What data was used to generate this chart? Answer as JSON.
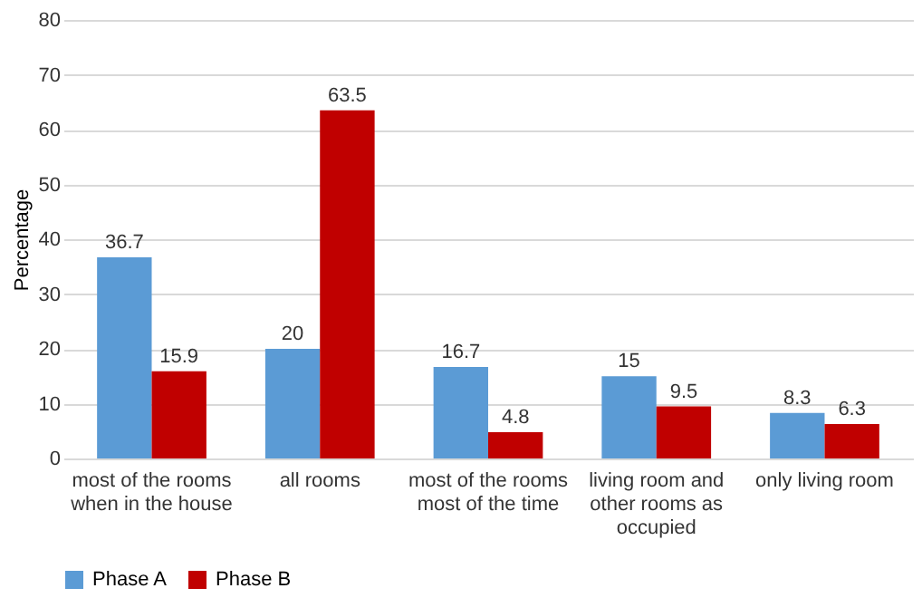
{
  "chart_data": {
    "type": "bar",
    "ylabel": "Percentage",
    "categories": [
      "most of the rooms when in the house",
      "all rooms",
      "most of the rooms most of the time",
      "living room and other rooms as occupied",
      "only living room"
    ],
    "series": [
      {
        "name": "Phase A",
        "color": "#5b9bd5",
        "values": [
          36.7,
          20,
          16.7,
          15,
          8.3
        ]
      },
      {
        "name": "Phase B",
        "color": "#c00000",
        "values": [
          15.9,
          63.5,
          4.8,
          9.5,
          6.3
        ]
      }
    ],
    "ylim": [
      0,
      80
    ],
    "yticks": [
      0,
      10,
      20,
      30,
      40,
      50,
      60,
      70,
      80
    ],
    "grid": "y",
    "legend": "bottom",
    "data_labels": true
  }
}
